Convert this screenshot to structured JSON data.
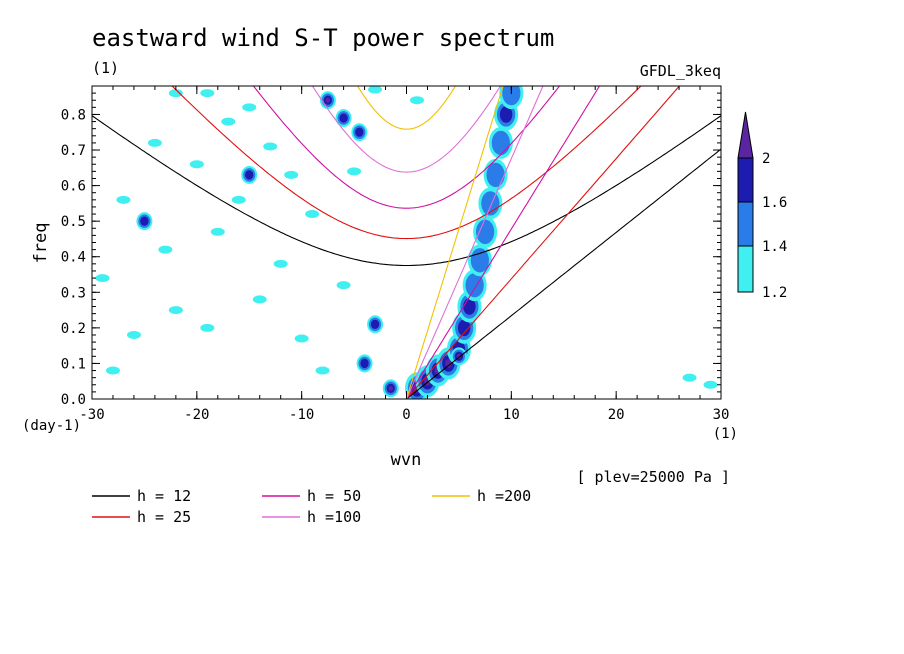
{
  "header": {
    "title": "eastward wind S-T power spectrum",
    "units_left": "(1)",
    "model": "GFDL_3keq",
    "plev": "[ plev=25000 Pa ]"
  },
  "chart_data": {
    "type": "heatmap",
    "title": "eastward wind S-T power spectrum",
    "xlabel": "wvn",
    "ylabel": "freq",
    "x_units": "(1)",
    "y_units": "(day-1)",
    "xlim": [
      -30,
      30
    ],
    "ylim": [
      0,
      0.88
    ],
    "xticks": [
      -30,
      -20,
      -10,
      0,
      10,
      20,
      30
    ],
    "xtick_labels": [
      "-30",
      "-20",
      "-10",
      "0",
      "10",
      "20",
      "30"
    ],
    "yticks": [
      0.0,
      0.1,
      0.2,
      0.3,
      0.4,
      0.5,
      0.6,
      0.7,
      0.8
    ],
    "ytick_labels": [
      "0.0",
      "0.1",
      "0.2",
      "0.3",
      "0.4",
      "0.5",
      "0.6",
      "0.7",
      "0.8"
    ],
    "colorbar": {
      "levels": [
        "1.2",
        "1.4",
        "1.6",
        "2"
      ],
      "colors": [
        "#40f0f0",
        "#2a7de8",
        "#1c1cb0",
        "#5a25a0"
      ]
    },
    "dispersion_curves": [
      {
        "label": "h = 12",
        "h": 12,
        "color": "#000000"
      },
      {
        "label": "h = 25",
        "h": 25,
        "color": "#e01010"
      },
      {
        "label": "h = 50",
        "h": 50,
        "color": "#d010a0"
      },
      {
        "label": "h =100",
        "h": 100,
        "color": "#e070d8"
      },
      {
        "label": "h =200",
        "h": 200,
        "color": "#f0c000"
      }
    ],
    "kelvin_ridge": [
      {
        "x": 1,
        "y": 0.03,
        "level": 3
      },
      {
        "x": 2,
        "y": 0.05,
        "level": 3
      },
      {
        "x": 3,
        "y": 0.08,
        "level": 3
      },
      {
        "x": 4,
        "y": 0.1,
        "level": 3
      },
      {
        "x": 5,
        "y": 0.14,
        "level": 2
      },
      {
        "x": 5.5,
        "y": 0.2,
        "level": 2
      },
      {
        "x": 6,
        "y": 0.26,
        "level": 2
      },
      {
        "x": 6.5,
        "y": 0.32,
        "level": 1
      },
      {
        "x": 7,
        "y": 0.39,
        "level": 1
      },
      {
        "x": 7.5,
        "y": 0.47,
        "level": 1
      },
      {
        "x": 8,
        "y": 0.55,
        "level": 1
      },
      {
        "x": 8.5,
        "y": 0.63,
        "level": 1
      },
      {
        "x": 9,
        "y": 0.72,
        "level": 1
      },
      {
        "x": 9.5,
        "y": 0.8,
        "level": 2
      },
      {
        "x": 10,
        "y": 0.86,
        "level": 1
      }
    ],
    "features": [
      {
        "x": -3,
        "y": 0.21,
        "level": 2
      },
      {
        "x": -4,
        "y": 0.1,
        "level": 2
      },
      {
        "x": -7.5,
        "y": 0.84,
        "level": 3
      },
      {
        "x": -6,
        "y": 0.79,
        "level": 2
      },
      {
        "x": -4.5,
        "y": 0.75,
        "level": 2
      },
      {
        "x": -15,
        "y": 0.63,
        "level": 2
      },
      {
        "x": -25,
        "y": 0.5,
        "level": 2
      },
      {
        "x": -1.5,
        "y": 0.03,
        "level": 3
      },
      {
        "x": 5,
        "y": 0.12,
        "level": 3
      }
    ],
    "noise_cyan": [
      {
        "x": -29,
        "y": 0.34
      },
      {
        "x": -27,
        "y": 0.56
      },
      {
        "x": -26,
        "y": 0.18
      },
      {
        "x": -25,
        "y": 0.5
      },
      {
        "x": -24,
        "y": 0.72
      },
      {
        "x": -22,
        "y": 0.86
      },
      {
        "x": -22,
        "y": 0.25
      },
      {
        "x": -20,
        "y": 0.66
      },
      {
        "x": -19,
        "y": 0.2
      },
      {
        "x": -18,
        "y": 0.47
      },
      {
        "x": -17,
        "y": 0.78
      },
      {
        "x": -16,
        "y": 0.56
      },
      {
        "x": -15,
        "y": 0.82
      },
      {
        "x": -14,
        "y": 0.28
      },
      {
        "x": -13,
        "y": 0.71
      },
      {
        "x": -12,
        "y": 0.38
      },
      {
        "x": -10,
        "y": 0.17
      },
      {
        "x": -9,
        "y": 0.52
      },
      {
        "x": -8,
        "y": 0.08
      },
      {
        "x": -6,
        "y": 0.32
      },
      {
        "x": -5,
        "y": 0.64
      },
      {
        "x": -28,
        "y": 0.08
      },
      {
        "x": -23,
        "y": 0.42
      },
      {
        "x": -11,
        "y": 0.63
      },
      {
        "x": 1,
        "y": 0.84
      },
      {
        "x": 27,
        "y": 0.06
      },
      {
        "x": 29,
        "y": 0.04
      },
      {
        "x": -3,
        "y": 0.87
      },
      {
        "x": -19,
        "y": 0.86
      }
    ]
  }
}
